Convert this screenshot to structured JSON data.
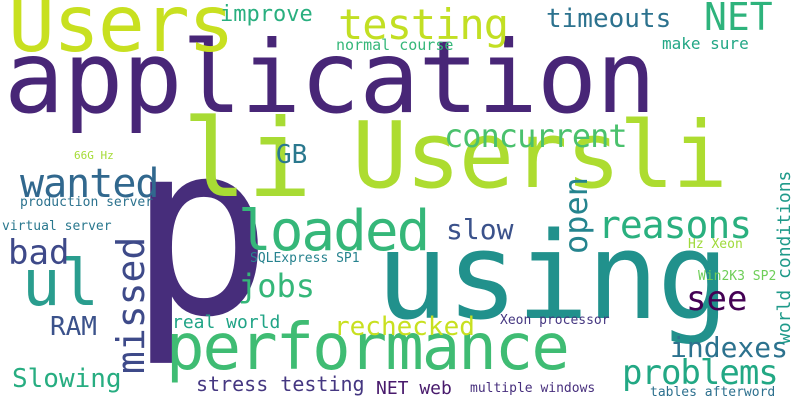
{
  "words": [
    {
      "text": "application",
      "color": "#482677"
    },
    {
      "text": "p",
      "color": "#472d7b"
    },
    {
      "text": "using",
      "color": "#21918c"
    },
    {
      "text": "Usersli",
      "color": "#addc30"
    },
    {
      "text": "performance",
      "color": "#3fbc73"
    },
    {
      "text": "li",
      "color": "#a8db34"
    },
    {
      "text": "Users",
      "color": "#c8e020"
    },
    {
      "text": "loaded",
      "color": "#35b779"
    },
    {
      "text": "ul",
      "color": "#2a9d8e"
    },
    {
      "text": "testing",
      "color": "#c2df23"
    },
    {
      "text": "NET",
      "color": "#2eb37c"
    },
    {
      "text": "timeouts",
      "color": "#2c728e"
    },
    {
      "text": "improve",
      "color": "#29af7f"
    },
    {
      "text": "normal course",
      "color": "#35b779"
    },
    {
      "text": "make sure",
      "color": "#22a785"
    },
    {
      "text": "concurrent",
      "color": "#4ac16d"
    },
    {
      "text": "GB",
      "color": "#2a788e"
    },
    {
      "text": "66G Hz",
      "color": "#a5db36"
    },
    {
      "text": "wanted",
      "color": "#31688e"
    },
    {
      "text": "reasons",
      "color": "#2ab07f"
    },
    {
      "text": "open",
      "color": "#25848e"
    },
    {
      "text": "slow",
      "color": "#3b528b"
    },
    {
      "text": "production server",
      "color": "#2c728e"
    },
    {
      "text": "virtual server",
      "color": "#2a788e"
    },
    {
      "text": "bad",
      "color": "#3e4989"
    },
    {
      "text": "missed",
      "color": "#3e4a89"
    },
    {
      "text": "jobs",
      "color": "#35b779"
    },
    {
      "text": "SQLExpress SP1",
      "color": "#26828e"
    },
    {
      "text": "Hz Xeon",
      "color": "#9fda3a"
    },
    {
      "text": "world conditions",
      "color": "#1f9a8a"
    },
    {
      "text": "see",
      "color": "#440154"
    },
    {
      "text": "Win2K3 SP2",
      "color": "#6ece58"
    },
    {
      "text": "RAM",
      "color": "#3b528b"
    },
    {
      "text": "rechecked",
      "color": "#c8e020"
    },
    {
      "text": "real world",
      "color": "#20a486"
    },
    {
      "text": "Xeon processor",
      "color": "#453781"
    },
    {
      "text": "indexes",
      "color": "#2c728e"
    },
    {
      "text": "problems",
      "color": "#22a884"
    },
    {
      "text": "Slowing",
      "color": "#27ad81"
    },
    {
      "text": "stress testing",
      "color": "#453781"
    },
    {
      "text": "NET web",
      "color": "#481a6c"
    },
    {
      "text": "multiple windows",
      "color": "#472f7d"
    },
    {
      "text": "tables afterword",
      "color": "#2d708e"
    }
  ]
}
